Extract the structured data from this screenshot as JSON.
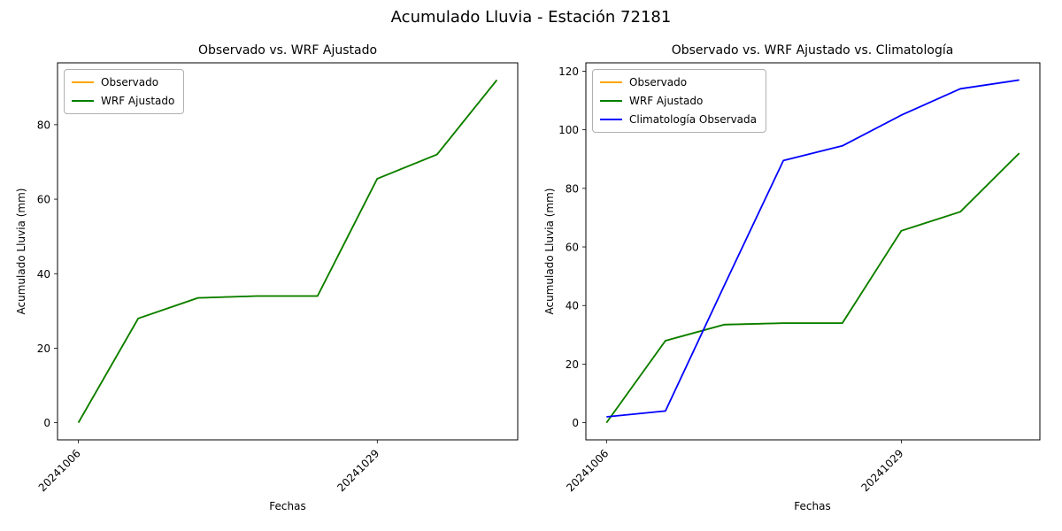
{
  "figure": {
    "suptitle": "Acumulado Lluvia - Estación 72181",
    "background": "#ffffff"
  },
  "chart_data": [
    {
      "type": "line",
      "title": "Observado vs. WRF Ajustado",
      "xlabel": "Fechas",
      "ylabel": "Acumulado Lluvia (mm)",
      "x_tick_labels": [
        {
          "index": 0,
          "label": "20241006"
        },
        {
          "index": 5,
          "label": "20241029"
        }
      ],
      "y_ticks": [
        0,
        20,
        40,
        60,
        80
      ],
      "ylim": [
        -4.6,
        96.6
      ],
      "grid": false,
      "legend_position": "upper left",
      "series": [
        {
          "name": "Observado",
          "color": "#FFA500",
          "values": [
            0,
            28,
            33.5,
            34,
            34,
            65.5,
            72,
            92
          ]
        },
        {
          "name": "WRF Ajustado",
          "color": "#008000",
          "values": [
            0,
            28,
            33.5,
            34,
            34,
            65.5,
            72,
            92
          ]
        }
      ]
    },
    {
      "type": "line",
      "title": "Observado vs. WRF Ajustado vs. Climatología",
      "xlabel": "Fechas",
      "ylabel": "Acumulado Lluvia (mm)",
      "x_tick_labels": [
        {
          "index": 0,
          "label": "20241006"
        },
        {
          "index": 5,
          "label": "20241029"
        }
      ],
      "y_ticks": [
        0,
        20,
        40,
        60,
        80,
        100,
        120
      ],
      "ylim": [
        -5.85,
        122.85
      ],
      "grid": false,
      "legend_position": "upper left",
      "series": [
        {
          "name": "Observado",
          "color": "#FFA500",
          "values": [
            0,
            28,
            33.5,
            34,
            34,
            65.5,
            72,
            92
          ]
        },
        {
          "name": "WRF Ajustado",
          "color": "#008000",
          "values": [
            0,
            28,
            33.5,
            34,
            34,
            65.5,
            72,
            92
          ]
        },
        {
          "name": "Climatología Observada",
          "color": "#0000FF",
          "values": [
            2,
            4,
            47,
            89.5,
            94.5,
            105,
            114,
            117
          ]
        }
      ]
    }
  ]
}
